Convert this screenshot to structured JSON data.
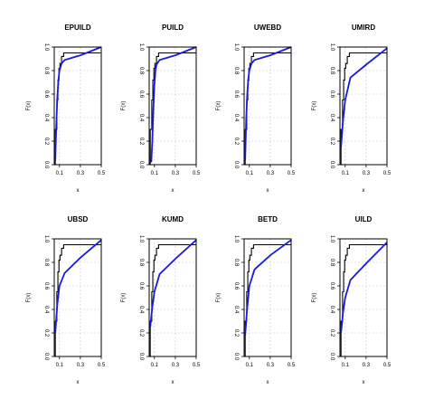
{
  "chart_data": [
    {
      "type": "line",
      "title": "EPUILD",
      "xlabel": "x",
      "ylabel": "F(x)",
      "xlim": [
        0.05,
        0.5
      ],
      "ylim": [
        0,
        1
      ],
      "xticks": [
        "0.1",
        "0.3",
        "0.5"
      ],
      "xtick_values": [
        0.1,
        0.3,
        0.5
      ],
      "yticks": [
        "0.0",
        "0.2",
        "0.4",
        "0.6",
        "0.8",
        "1.0"
      ],
      "ytick_values": [
        0,
        0.2,
        0.4,
        0.6,
        0.8,
        1.0
      ],
      "grid": true,
      "empirical_x": [
        0.06,
        0.075,
        0.085,
        0.095,
        0.105,
        0.12,
        0.14,
        0.5
      ],
      "empirical_y": [
        0.3,
        0.55,
        0.72,
        0.82,
        0.86,
        0.92,
        0.95,
        0.95
      ],
      "fitted_x": [
        0.06,
        0.07,
        0.08,
        0.09,
        0.1,
        0.12,
        0.15,
        0.3,
        0.5
      ],
      "fitted_y": [
        0.04,
        0.35,
        0.58,
        0.72,
        0.8,
        0.86,
        0.89,
        0.93,
        1.0
      ]
    },
    {
      "type": "line",
      "title": "PUILD",
      "xlabel": "x",
      "ylabel": "F(x)",
      "xlim": [
        0.05,
        0.5
      ],
      "ylim": [
        0,
        1
      ],
      "xticks": [
        "0.1",
        "0.3",
        "0.5"
      ],
      "xtick_values": [
        0.1,
        0.3,
        0.5
      ],
      "yticks": [
        "0.0",
        "0.2",
        "0.4",
        "0.6",
        "0.8",
        "1.0"
      ],
      "ytick_values": [
        0,
        0.2,
        0.4,
        0.6,
        0.8,
        1.0
      ],
      "grid": true,
      "empirical_x": [
        0.06,
        0.075,
        0.085,
        0.095,
        0.105,
        0.12,
        0.14,
        0.5
      ],
      "empirical_y": [
        0.3,
        0.55,
        0.72,
        0.82,
        0.86,
        0.92,
        0.95,
        0.95
      ],
      "fitted_x": [
        0.07,
        0.08,
        0.09,
        0.1,
        0.11,
        0.12,
        0.15,
        0.3,
        0.5
      ],
      "fitted_y": [
        0.02,
        0.2,
        0.48,
        0.68,
        0.8,
        0.85,
        0.89,
        0.93,
        1.0
      ]
    },
    {
      "type": "line",
      "title": "UWEBD",
      "xlabel": "x",
      "ylabel": "F(x)",
      "xlim": [
        0.05,
        0.5
      ],
      "ylim": [
        0,
        1
      ],
      "xticks": [
        "0.1",
        "0.3",
        "0.5"
      ],
      "xtick_values": [
        0.1,
        0.3,
        0.5
      ],
      "yticks": [
        "0.0",
        "0.2",
        "0.4",
        "0.6",
        "0.8",
        "1.0"
      ],
      "ytick_values": [
        0,
        0.2,
        0.4,
        0.6,
        0.8,
        1.0
      ],
      "grid": true,
      "empirical_x": [
        0.06,
        0.075,
        0.085,
        0.095,
        0.105,
        0.12,
        0.14,
        0.5
      ],
      "empirical_y": [
        0.3,
        0.55,
        0.72,
        0.82,
        0.86,
        0.92,
        0.95,
        0.95
      ],
      "fitted_x": [
        0.06,
        0.07,
        0.08,
        0.09,
        0.1,
        0.12,
        0.15,
        0.3,
        0.5
      ],
      "fitted_y": [
        0.04,
        0.38,
        0.6,
        0.73,
        0.8,
        0.86,
        0.89,
        0.93,
        1.0
      ]
    },
    {
      "type": "line",
      "title": "UMIRD",
      "xlabel": "x",
      "ylabel": "F(x)",
      "xlim": [
        0.05,
        0.5
      ],
      "ylim": [
        0,
        1
      ],
      "xticks": [
        "0.1",
        "0.3",
        "0.5"
      ],
      "xtick_values": [
        0.1,
        0.3,
        0.5
      ],
      "yticks": [
        "0.0",
        "0.2",
        "0.4",
        "0.6",
        "0.8",
        "1.0"
      ],
      "ytick_values": [
        0,
        0.2,
        0.4,
        0.6,
        0.8,
        1.0
      ],
      "grid": true,
      "empirical_x": [
        0.06,
        0.075,
        0.085,
        0.095,
        0.105,
        0.12,
        0.14,
        0.5
      ],
      "empirical_y": [
        0.3,
        0.55,
        0.72,
        0.82,
        0.86,
        0.92,
        0.95,
        0.95
      ],
      "fitted_x": [
        0.06,
        0.08,
        0.1,
        0.15,
        0.3,
        0.5
      ],
      "fitted_y": [
        0.15,
        0.38,
        0.55,
        0.74,
        0.85,
        0.99
      ]
    },
    {
      "type": "line",
      "title": "UBSD",
      "xlabel": "x",
      "ylabel": "F(x)",
      "xlim": [
        0.05,
        0.5
      ],
      "ylim": [
        0,
        1
      ],
      "xticks": [
        "0.1",
        "0.3",
        "0.5"
      ],
      "xtick_values": [
        0.1,
        0.3,
        0.5
      ],
      "yticks": [
        "0.0",
        "0.2",
        "0.4",
        "0.6",
        "0.8",
        "1.0"
      ],
      "ytick_values": [
        0,
        0.2,
        0.4,
        0.6,
        0.8,
        1.0
      ],
      "grid": true,
      "empirical_x": [
        0.06,
        0.075,
        0.085,
        0.095,
        0.105,
        0.12,
        0.14,
        0.5
      ],
      "empirical_y": [
        0.3,
        0.55,
        0.72,
        0.82,
        0.86,
        0.92,
        0.95,
        0.95
      ],
      "fitted_x": [
        0.06,
        0.08,
        0.1,
        0.15,
        0.3,
        0.5
      ],
      "fitted_y": [
        0.2,
        0.45,
        0.6,
        0.71,
        0.84,
        0.99
      ]
    },
    {
      "type": "line",
      "title": "KUMD",
      "xlabel": "x",
      "ylabel": "F(x)",
      "xlim": [
        0.05,
        0.5
      ],
      "ylim": [
        0,
        1
      ],
      "xticks": [
        "0.1",
        "0.3",
        "0.5"
      ],
      "xtick_values": [
        0.1,
        0.3,
        0.5
      ],
      "yticks": [
        "0.0",
        "0.2",
        "0.4",
        "0.6",
        "0.8",
        "1.0"
      ],
      "ytick_values": [
        0,
        0.2,
        0.4,
        0.6,
        0.8,
        1.0
      ],
      "grid": true,
      "empirical_x": [
        0.06,
        0.075,
        0.085,
        0.095,
        0.105,
        0.12,
        0.14,
        0.5
      ],
      "empirical_y": [
        0.3,
        0.55,
        0.72,
        0.82,
        0.86,
        0.92,
        0.95,
        0.95
      ],
      "fitted_x": [
        0.06,
        0.08,
        0.1,
        0.15,
        0.3,
        0.5
      ],
      "fitted_y": [
        0.25,
        0.42,
        0.55,
        0.7,
        0.83,
        0.99
      ]
    },
    {
      "type": "line",
      "title": "BETD",
      "xlabel": "x",
      "ylabel": "F(x)",
      "xlim": [
        0.05,
        0.5
      ],
      "ylim": [
        0,
        1
      ],
      "xticks": [
        "0.1",
        "0.3",
        "0.5"
      ],
      "xtick_values": [
        0.1,
        0.3,
        0.5
      ],
      "yticks": [
        "0.0",
        "0.2",
        "0.4",
        "0.6",
        "0.8",
        "1.0"
      ],
      "ytick_values": [
        0,
        0.2,
        0.4,
        0.6,
        0.8,
        1.0
      ],
      "grid": true,
      "empirical_x": [
        0.06,
        0.075,
        0.085,
        0.095,
        0.105,
        0.12,
        0.14,
        0.5
      ],
      "empirical_y": [
        0.3,
        0.55,
        0.72,
        0.82,
        0.86,
        0.92,
        0.95,
        0.95
      ],
      "fitted_x": [
        0.06,
        0.08,
        0.1,
        0.15,
        0.3,
        0.5
      ],
      "fitted_y": [
        0.18,
        0.42,
        0.6,
        0.74,
        0.86,
        0.99
      ]
    },
    {
      "type": "line",
      "title": "UILD",
      "xlabel": "x",
      "ylabel": "F(x)",
      "xlim": [
        0.05,
        0.5
      ],
      "ylim": [
        0,
        1
      ],
      "xticks": [
        "0.1",
        "0.3",
        "0.5"
      ],
      "xtick_values": [
        0.1,
        0.3,
        0.5
      ],
      "yticks": [
        "0.0",
        "0.2",
        "0.4",
        "0.6",
        "0.8",
        "1.0"
      ],
      "ytick_values": [
        0,
        0.2,
        0.4,
        0.6,
        0.8,
        1.0
      ],
      "grid": true,
      "empirical_x": [
        0.06,
        0.075,
        0.085,
        0.095,
        0.105,
        0.12,
        0.14,
        0.5
      ],
      "empirical_y": [
        0.3,
        0.55,
        0.72,
        0.82,
        0.86,
        0.92,
        0.95,
        0.95
      ],
      "fitted_x": [
        0.06,
        0.08,
        0.1,
        0.15,
        0.3,
        0.5
      ],
      "fitted_y": [
        0.2,
        0.38,
        0.5,
        0.65,
        0.79,
        0.97
      ]
    }
  ],
  "colors": {
    "empirical": "#000000",
    "fitted": "#1a1adb"
  }
}
